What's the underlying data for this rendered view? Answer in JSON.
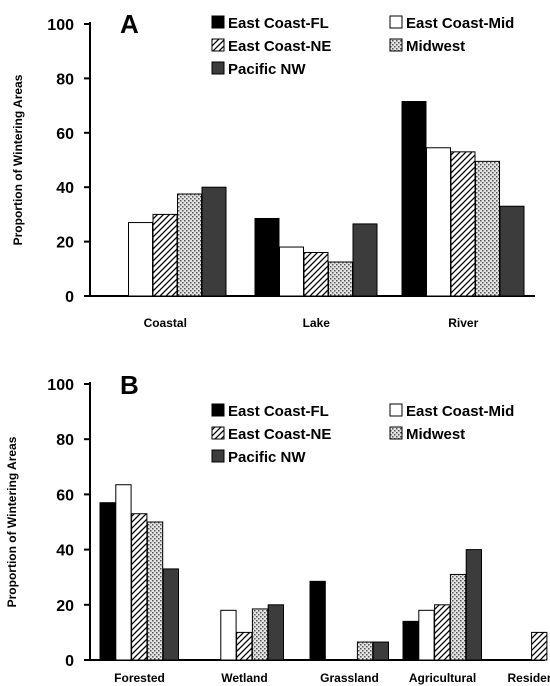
{
  "legend": [
    {
      "name": "East Coast-FL",
      "fill": "#000000",
      "pattern": "solid"
    },
    {
      "name": "East Coast-Mid",
      "fill": "#ffffff",
      "pattern": "solid"
    },
    {
      "name": "East Coast-NE",
      "fill": "#ffffff",
      "pattern": "diagonal-hatch"
    },
    {
      "name": "Midwest",
      "fill": "#dcdcdc",
      "pattern": "dots"
    },
    {
      "name": "Pacific NW",
      "fill": "#3c3c3c",
      "pattern": "solid"
    }
  ],
  "chart_data": [
    {
      "type": "bar",
      "panel_label": "A",
      "ylabel": "Proportion of Wintering Areas",
      "xlabel": "",
      "ylim": [
        0,
        100
      ],
      "yticks": [
        "0",
        "20",
        "40",
        "60",
        "80",
        "100"
      ],
      "categories": [
        "Coastal",
        "Lake",
        "River"
      ],
      "legend_position": "top-right",
      "grid": false,
      "series": [
        {
          "name": "East Coast-FL",
          "values": [
            0,
            28.5,
            71.5
          ]
        },
        {
          "name": "East Coast-Mid",
          "values": [
            27,
            18,
            54.5
          ]
        },
        {
          "name": "East Coast-NE",
          "values": [
            30,
            16,
            53
          ]
        },
        {
          "name": "Midwest",
          "values": [
            37.5,
            12.5,
            49.5
          ]
        },
        {
          "name": "Pacific NW",
          "values": [
            40,
            26.5,
            33
          ]
        }
      ]
    },
    {
      "type": "bar",
      "panel_label": "B",
      "ylabel": "Proportion of Wintering Areas",
      "xlabel": "",
      "ylim": [
        0,
        100
      ],
      "yticks": [
        "0",
        "20",
        "40",
        "60",
        "80",
        "100"
      ],
      "categories": [
        "Forested",
        "Wetland",
        "Grassland",
        "Agricultural",
        "Residential"
      ],
      "legend_position": "top-right",
      "grid": false,
      "series": [
        {
          "name": "East Coast-FL",
          "values": [
            57,
            0,
            28.5,
            14,
            0
          ]
        },
        {
          "name": "East Coast-Mid",
          "values": [
            63.5,
            18,
            0,
            18,
            0
          ]
        },
        {
          "name": "East Coast-NE",
          "values": [
            53,
            10,
            0,
            20,
            10
          ]
        },
        {
          "name": "Midwest",
          "values": [
            50,
            18.5,
            6.5,
            31,
            0
          ]
        },
        {
          "name": "Pacific NW",
          "values": [
            33,
            20,
            6.5,
            40,
            0
          ]
        }
      ]
    }
  ]
}
